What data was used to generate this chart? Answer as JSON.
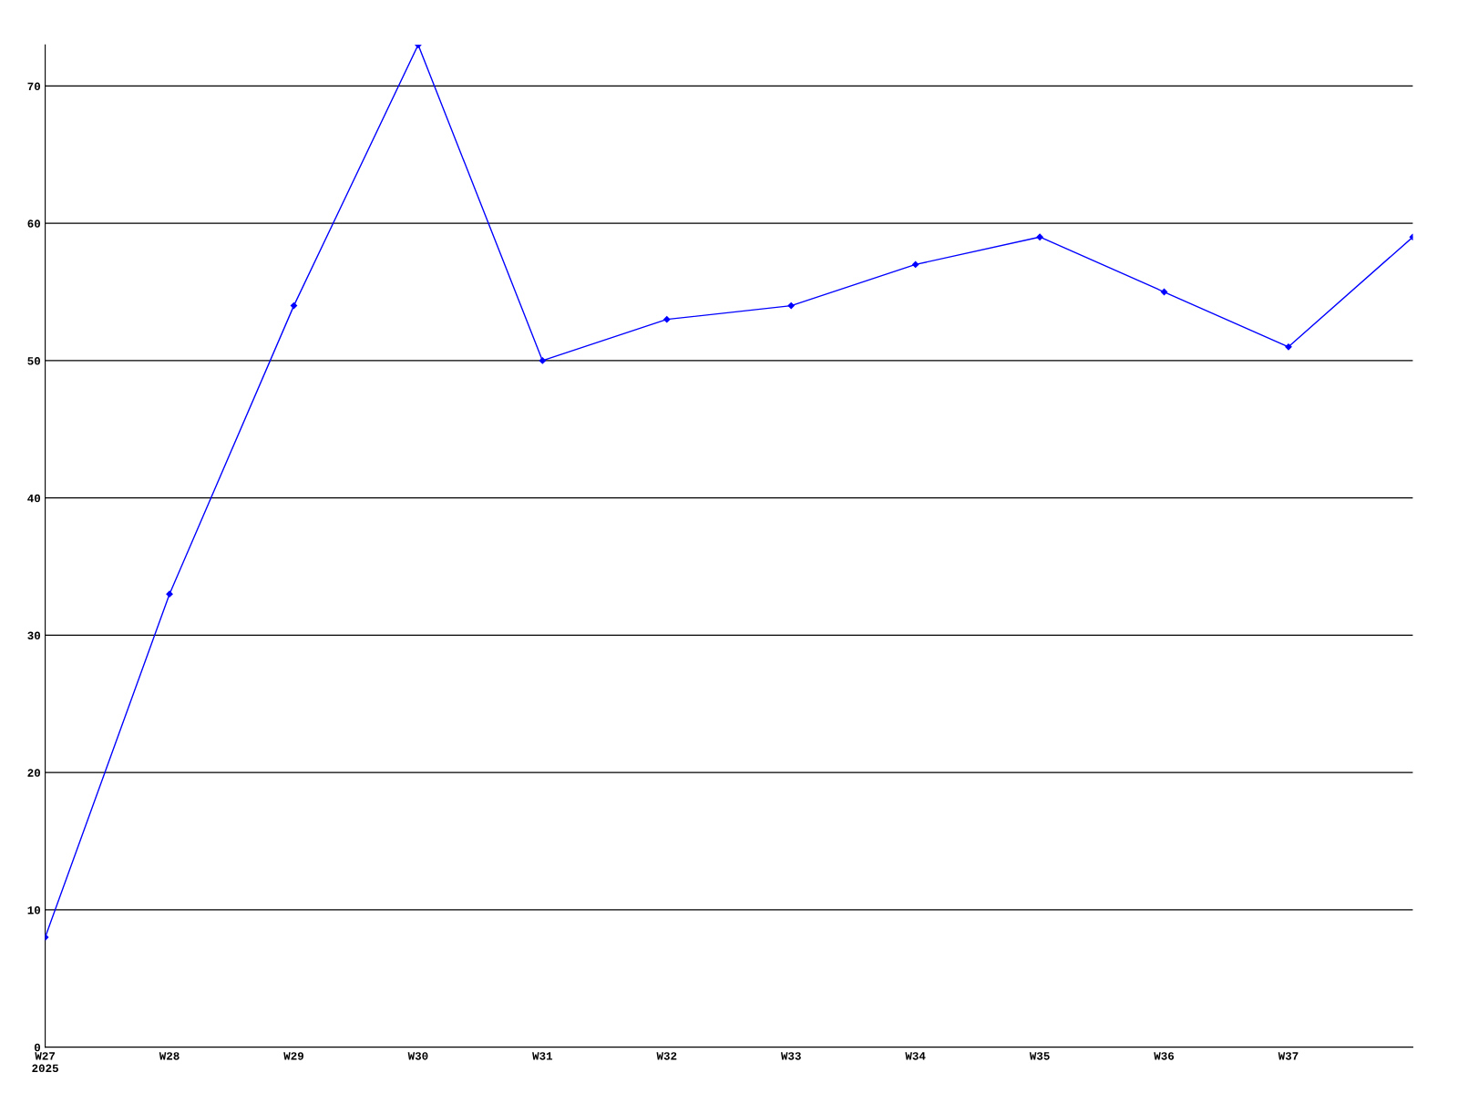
{
  "chart_data": {
    "type": "line",
    "categories": [
      "W27\n2025",
      "W28",
      "W29",
      "W30",
      "W31",
      "W32",
      "W33",
      "W34",
      "W35",
      "W36",
      "W37",
      null
    ],
    "series": [
      {
        "color": "#0000ff",
        "values": [
          8,
          33,
          54,
          73,
          50,
          53,
          54,
          57,
          59,
          55,
          51,
          59
        ]
      }
    ],
    "ylim": [
      0,
      73
    ],
    "yticks": [
      0,
      10,
      20,
      30,
      40,
      50,
      60,
      70
    ],
    "grid": "y",
    "marker": "diamond",
    "line_style": "solid"
  }
}
